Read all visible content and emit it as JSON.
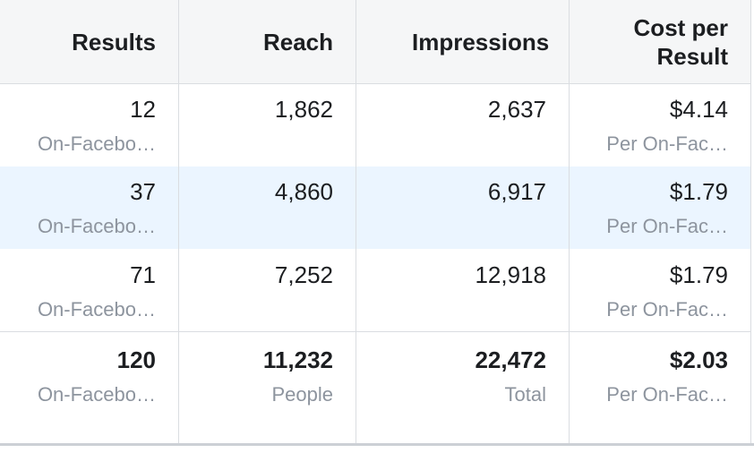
{
  "table": {
    "columns": [
      "Results",
      "Reach",
      "Impressions",
      "Cost per Result"
    ],
    "rows": [
      {
        "cells": [
          {
            "value": "12",
            "sub": "On-Facebo…"
          },
          {
            "value": "1,862"
          },
          {
            "value": "2,637"
          },
          {
            "value": "$4.14",
            "sub": "Per On-Fac…"
          }
        ]
      },
      {
        "cells": [
          {
            "value": "37",
            "sub": "On-Facebo…"
          },
          {
            "value": "4,860"
          },
          {
            "value": "6,917"
          },
          {
            "value": "$1.79",
            "sub": "Per On-Fac…"
          }
        ]
      },
      {
        "cells": [
          {
            "value": "71",
            "sub": "On-Facebo…"
          },
          {
            "value": "7,252"
          },
          {
            "value": "12,918"
          },
          {
            "value": "$1.79",
            "sub": "Per On-Fac…"
          }
        ]
      }
    ],
    "total": {
      "cells": [
        {
          "value": "120",
          "sub": "On-Facebo…"
        },
        {
          "value": "11,232",
          "sub": "People"
        },
        {
          "value": "22,472",
          "sub": "Total"
        },
        {
          "value": "$2.03",
          "sub": "Per On-Fac…"
        }
      ]
    }
  }
}
